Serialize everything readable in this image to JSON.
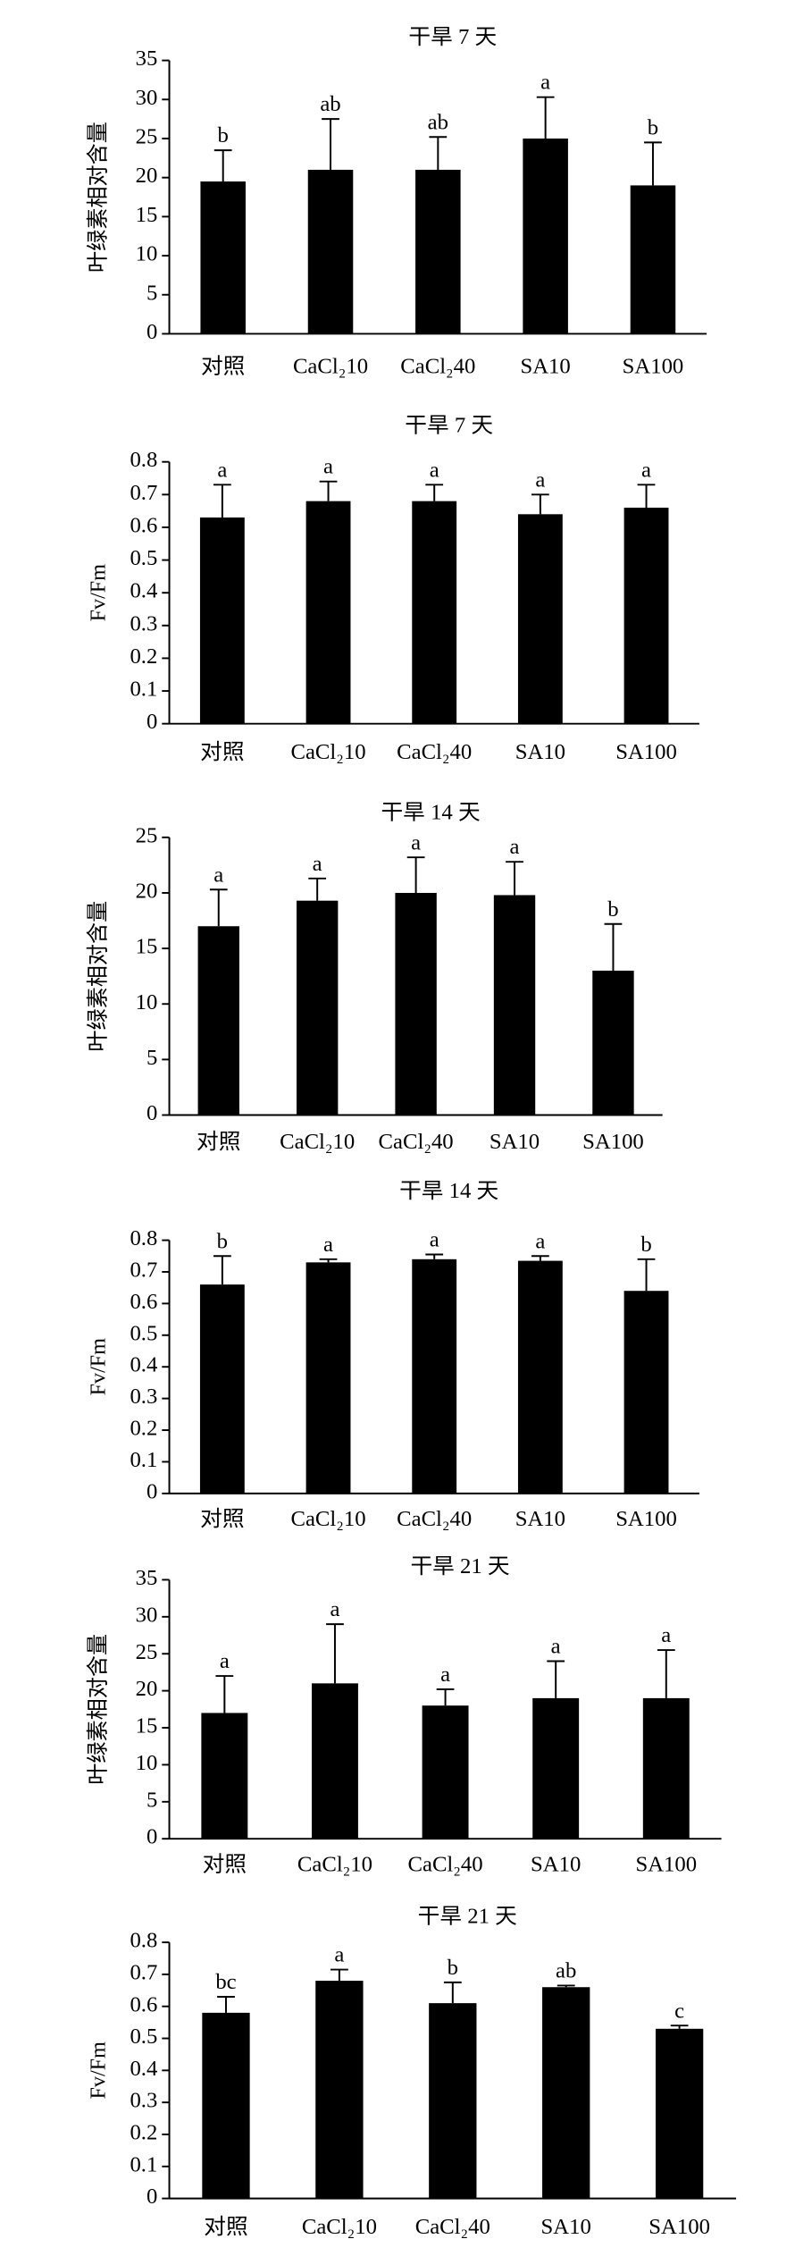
{
  "chart_data": [
    {
      "type": "bar",
      "title": "干旱 7 天",
      "y_label": "叶绿素相对含量",
      "categories": [
        "对照",
        "CaCl₂10",
        "CaCl₂40",
        "SA10",
        "SA100"
      ],
      "values": [
        19.5,
        21,
        21,
        25,
        19
      ],
      "errors": [
        4,
        6.5,
        4.2,
        5.3,
        5.5
      ],
      "annotations": [
        "b",
        "ab",
        "ab",
        "a",
        "b"
      ],
      "color": "#000000",
      "ylim": [
        0,
        35
      ],
      "yticks": [
        0,
        5,
        10,
        15,
        20,
        25,
        30,
        35
      ]
    },
    {
      "type": "bar",
      "title": "干旱 7 天",
      "y_label": "Fv/Fm",
      "categories": [
        "对照",
        "CaCl₂10",
        "CaCl₂40",
        "SA10",
        "SA100"
      ],
      "values": [
        0.63,
        0.68,
        0.68,
        0.64,
        0.66
      ],
      "errors": [
        0.1,
        0.06,
        0.05,
        0.06,
        0.07
      ],
      "annotations": [
        "a",
        "a",
        "a",
        "a",
        "a"
      ],
      "color": "#000000",
      "ylim": [
        0,
        0.8
      ],
      "yticks": [
        0,
        0.1,
        0.2,
        0.3,
        0.4,
        0.5,
        0.6,
        0.7,
        0.8
      ]
    },
    {
      "type": "bar",
      "title": "干旱 14 天",
      "y_label": "叶绿素相对含量",
      "categories": [
        "对照",
        "CaCl₂10",
        "CaCl₂40",
        "SA10",
        "SA100"
      ],
      "values": [
        17,
        19.3,
        20,
        19.8,
        13
      ],
      "errors": [
        3.3,
        2,
        3.2,
        3,
        4.2
      ],
      "annotations": [
        "a",
        "a",
        "a",
        "a",
        "b"
      ],
      "color": "#000000",
      "ylim": [
        0,
        25
      ],
      "yticks": [
        0,
        5,
        10,
        15,
        20,
        25
      ]
    },
    {
      "type": "bar",
      "title": "干旱 14 天",
      "y_label": "Fv/Fm",
      "categories": [
        "对照",
        "CaCl₂10",
        "CaCl₂40",
        "SA10",
        "SA100"
      ],
      "values": [
        0.66,
        0.73,
        0.74,
        0.735,
        0.64
      ],
      "errors": [
        0.09,
        0.01,
        0.015,
        0.015,
        0.1
      ],
      "annotations": [
        "b",
        "a",
        "a",
        "a",
        "b"
      ],
      "color": "#000000",
      "ylim": [
        0,
        0.8
      ],
      "yticks": [
        0,
        0.1,
        0.2,
        0.3,
        0.4,
        0.5,
        0.6,
        0.7,
        0.8
      ]
    },
    {
      "type": "bar",
      "title": "干旱 21 天",
      "y_label": "叶绿素相对含量",
      "categories": [
        "对照",
        "CaCl₂10",
        "CaCl₂40",
        "SA10",
        "SA100"
      ],
      "values": [
        17,
        21,
        18,
        19,
        19
      ],
      "errors": [
        5,
        8,
        2.2,
        5,
        6.5
      ],
      "annotations": [
        "a",
        "a",
        "a",
        "a",
        "a"
      ],
      "color": "#000000",
      "ylim": [
        0,
        35
      ],
      "yticks": [
        0,
        5,
        10,
        15,
        20,
        25,
        30,
        35
      ]
    },
    {
      "type": "bar",
      "title": "干旱 21 天",
      "y_label": "Fv/Fm",
      "categories": [
        "对照",
        "CaCl₂10",
        "CaCl₂40",
        "SA10",
        "SA100"
      ],
      "values": [
        0.58,
        0.68,
        0.61,
        0.66,
        0.53
      ],
      "errors": [
        0.05,
        0.035,
        0.065,
        0.005,
        0.01
      ],
      "annotations": [
        "bc",
        "a",
        "b",
        "ab",
        "c"
      ],
      "color": "#000000",
      "ylim": [
        0,
        0.8
      ],
      "yticks": [
        0,
        0.1,
        0.2,
        0.3,
        0.4,
        0.5,
        0.6,
        0.7,
        0.8
      ]
    }
  ]
}
